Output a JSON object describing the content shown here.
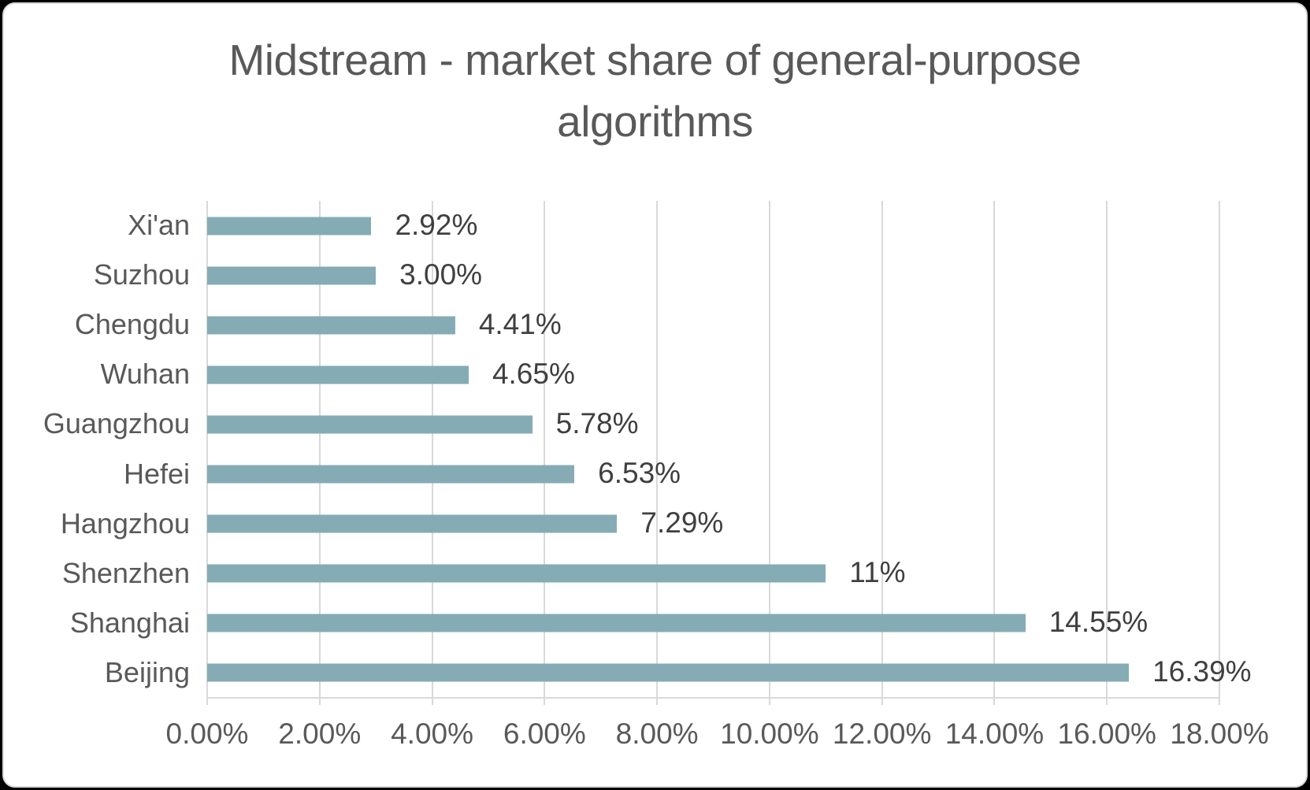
{
  "chart_data": {
    "type": "bar",
    "orientation": "horizontal",
    "title": "Midstream - market share of general-purpose algorithms",
    "categories": [
      "Xi'an",
      "Suzhou",
      "Chengdu",
      "Wuhan",
      "Guangzhou",
      "Hefei",
      "Hangzhou",
      "Shenzhen",
      "Shanghai",
      "Beijing"
    ],
    "values": [
      2.92,
      3.0,
      4.41,
      4.65,
      5.78,
      6.53,
      7.29,
      11,
      14.55,
      16.39
    ],
    "data_labels": [
      "2.92%",
      "3.00%",
      "4.41%",
      "4.65%",
      "5.78%",
      "6.53%",
      "7.29%",
      "11%",
      "14.55%",
      "16.39%"
    ],
    "x_tick_labels": [
      "0.00%",
      "2.00%",
      "4.00%",
      "6.00%",
      "8.00%",
      "10.00%",
      "12.00%",
      "14.00%",
      "16.00%",
      "18.00%"
    ],
    "xlim": [
      0,
      18
    ],
    "grid": true,
    "legend": false,
    "colors": {
      "bar": "#85ACB5",
      "grid": "#D9D9D9",
      "title_text": "#595959",
      "axis_text": "#595959",
      "value_text": "#3F3F3F",
      "plot_background": "#FFFFFF",
      "frame_background": "#000000"
    }
  }
}
